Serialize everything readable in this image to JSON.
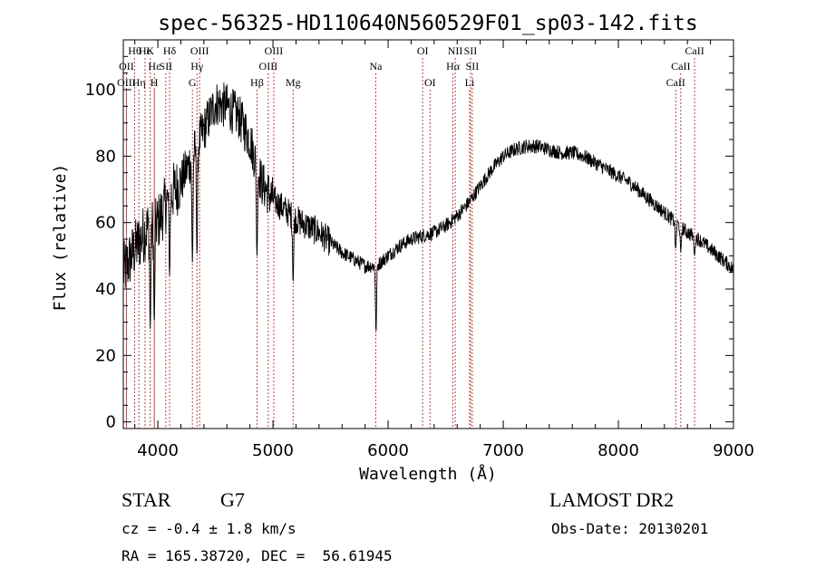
{
  "chart_data": {
    "type": "line",
    "title": "spec-56325-HD110640N560529F01_sp03-142.fits",
    "xlabel": "Wavelength (Å)",
    "ylabel": "Flux (relative)",
    "xlim": [
      3700,
      9000
    ],
    "ylim": [
      -2,
      115
    ],
    "x_ticks": [
      "4000",
      "5000",
      "6000",
      "7000",
      "8000",
      "9000"
    ],
    "y_ticks": [
      "0",
      "20",
      "40",
      "60",
      "80",
      "100"
    ],
    "series": [
      {
        "continuum": [
          [
            3700,
            45
          ],
          [
            3800,
            52
          ],
          [
            3900,
            58
          ],
          [
            4000,
            60
          ],
          [
            4100,
            68
          ],
          [
            4200,
            72
          ],
          [
            4300,
            80
          ],
          [
            4400,
            88
          ],
          [
            4500,
            96
          ],
          [
            4600,
            95
          ],
          [
            4700,
            92
          ],
          [
            4800,
            85
          ],
          [
            4900,
            72
          ],
          [
            5000,
            67
          ],
          [
            5100,
            64
          ],
          [
            5200,
            61
          ],
          [
            5300,
            59
          ],
          [
            5400,
            57
          ],
          [
            5500,
            54
          ],
          [
            5600,
            51
          ],
          [
            5700,
            49
          ],
          [
            5800,
            47
          ],
          [
            5900,
            47
          ],
          [
            6000,
            50
          ],
          [
            6100,
            53
          ],
          [
            6200,
            55
          ],
          [
            6300,
            56
          ],
          [
            6400,
            57
          ],
          [
            6500,
            59
          ],
          [
            6600,
            62
          ],
          [
            6700,
            66
          ],
          [
            6800,
            71
          ],
          [
            6900,
            76
          ],
          [
            7000,
            80
          ],
          [
            7100,
            82
          ],
          [
            7200,
            83
          ],
          [
            7300,
            83
          ],
          [
            7400,
            82
          ],
          [
            7500,
            81
          ],
          [
            7600,
            81
          ],
          [
            7700,
            80
          ],
          [
            7800,
            78
          ],
          [
            7900,
            76
          ],
          [
            8000,
            74
          ],
          [
            8100,
            72
          ],
          [
            8200,
            69
          ],
          [
            8300,
            66
          ],
          [
            8400,
            63
          ],
          [
            8500,
            60
          ],
          [
            8600,
            57
          ],
          [
            8700,
            55
          ],
          [
            8800,
            52
          ],
          [
            8900,
            49
          ],
          [
            9000,
            46
          ]
        ],
        "dips": [
          [
            3934,
            28
          ],
          [
            3969,
            30
          ],
          [
            4102,
            44
          ],
          [
            4300,
            48
          ],
          [
            4340,
            50
          ],
          [
            4861,
            50
          ],
          [
            5175,
            42
          ],
          [
            5895,
            27
          ],
          [
            8498,
            52
          ],
          [
            8542,
            51
          ],
          [
            8662,
            50
          ]
        ]
      }
    ],
    "lines": [
      {
        "label": "Hθ",
        "x": 3798,
        "row": 1
      },
      {
        "label": "OII",
        "x": 3727,
        "row": 2
      },
      {
        "label": "OIII",
        "x": 3727,
        "row": 3
      },
      {
        "label": "He",
        "x": 3889,
        "row": 1
      },
      {
        "label": "Hε",
        "x": 3970,
        "row": 2
      },
      {
        "label": "Hη",
        "x": 3835,
        "row": 3
      },
      {
        "label": "K",
        "x": 3934,
        "row": 1
      },
      {
        "label": "SII",
        "x": 4069,
        "row": 2
      },
      {
        "label": "H",
        "x": 3968,
        "row": 3
      },
      {
        "label": "Hδ",
        "x": 4102,
        "row": 1
      },
      {
        "label": "OIII",
        "x": 4363,
        "row": 1
      },
      {
        "label": "Hγ",
        "x": 4340,
        "row": 2
      },
      {
        "label": "G",
        "x": 4300,
        "row": 3
      },
      {
        "label": "OIII",
        "x": 5007,
        "row": 1
      },
      {
        "label": "OIII",
        "x": 4959,
        "row": 2
      },
      {
        "label": "Hβ",
        "x": 4861,
        "row": 3
      },
      {
        "label": "Mg",
        "x": 5175,
        "row": 3
      },
      {
        "label": "Na",
        "x": 5893,
        "row": 2
      },
      {
        "label": "OI",
        "x": 6300,
        "row": 1
      },
      {
        "label": "OI",
        "x": 6364,
        "row": 3
      },
      {
        "label": "NII",
        "x": 6583,
        "row": 1
      },
      {
        "label": "SII",
        "x": 6716,
        "row": 1
      },
      {
        "label": "Hα",
        "x": 6563,
        "row": 2
      },
      {
        "label": "SII",
        "x": 6731,
        "row": 2
      },
      {
        "label": "Li",
        "x": 6708,
        "row": 3
      },
      {
        "label": "CaII",
        "x": 8662,
        "row": 1
      },
      {
        "label": "CaII",
        "x": 8542,
        "row": 2
      },
      {
        "label": "CaII",
        "x": 8498,
        "row": 3
      }
    ]
  },
  "info": {
    "object_class": "STAR",
    "subclass": "G7",
    "survey": "LAMOST DR2",
    "redshift": "cz = -0.4 ± 1.8 km/s",
    "obs_date": "Obs-Date: 20130201",
    "coords": "RA = 165.38720, DEC =  56.61945"
  }
}
